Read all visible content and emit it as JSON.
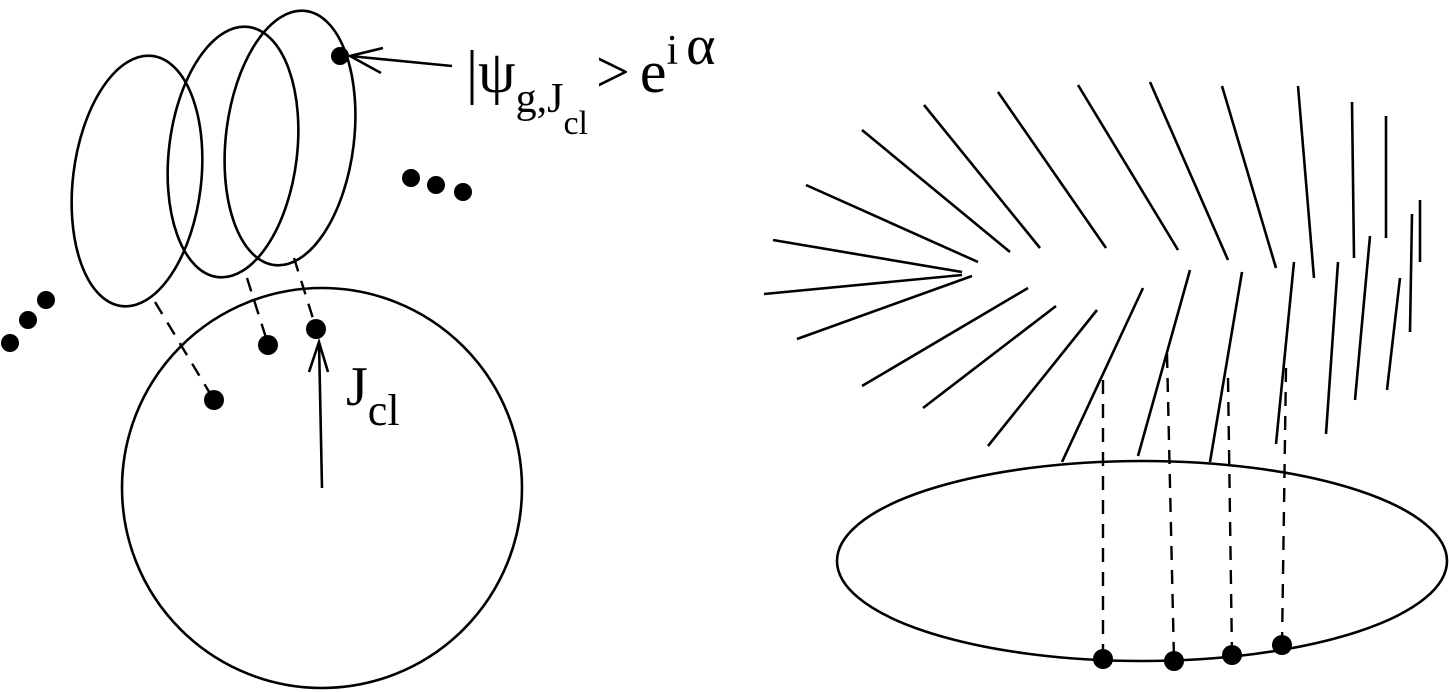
{
  "labels": {
    "state_bar": "|",
    "state_psi": "ψ",
    "state_sub": "g,J",
    "state_subsub": "cl",
    "state_gt": ">",
    "state_e": "e",
    "state_sup_i": "i",
    "state_sup_alpha": "α",
    "j_main": "J",
    "j_sub": "cl"
  },
  "ellipsis": "•••"
}
